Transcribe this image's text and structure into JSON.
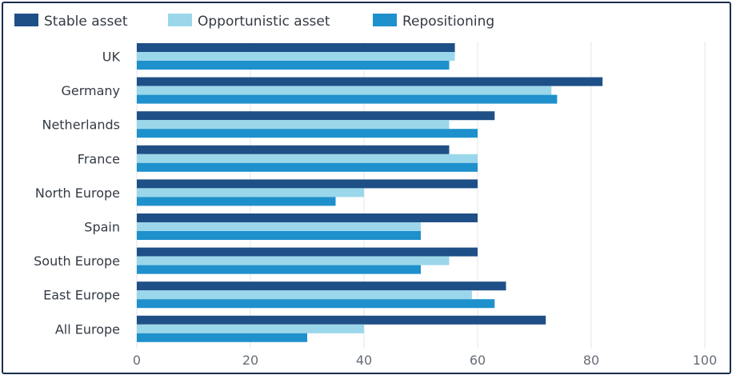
{
  "chart_data": {
    "type": "bar",
    "orientation": "horizontal",
    "categories": [
      "UK",
      "Germany",
      "Netherlands",
      "France",
      "North Europe",
      "Spain",
      "South Europe",
      "East Europe",
      "All Europe"
    ],
    "series": [
      {
        "name": "Stable asset",
        "color": "#1f4f87",
        "values": [
          56,
          82,
          63,
          55,
          60,
          60,
          60,
          65,
          72
        ]
      },
      {
        "name": "Opportunistic asset",
        "color": "#9bd7ea",
        "values": [
          56,
          73,
          55,
          60,
          40,
          50,
          55,
          59,
          40
        ]
      },
      {
        "name": "Repositioning",
        "color": "#1e90cc",
        "values": [
          55,
          74,
          60,
          60,
          35,
          50,
          50,
          63,
          30
        ]
      }
    ],
    "xlim": [
      0,
      100
    ],
    "xticks": [
      0,
      20,
      40,
      60,
      80,
      100
    ],
    "grid": true,
    "legend": "top-left"
  }
}
